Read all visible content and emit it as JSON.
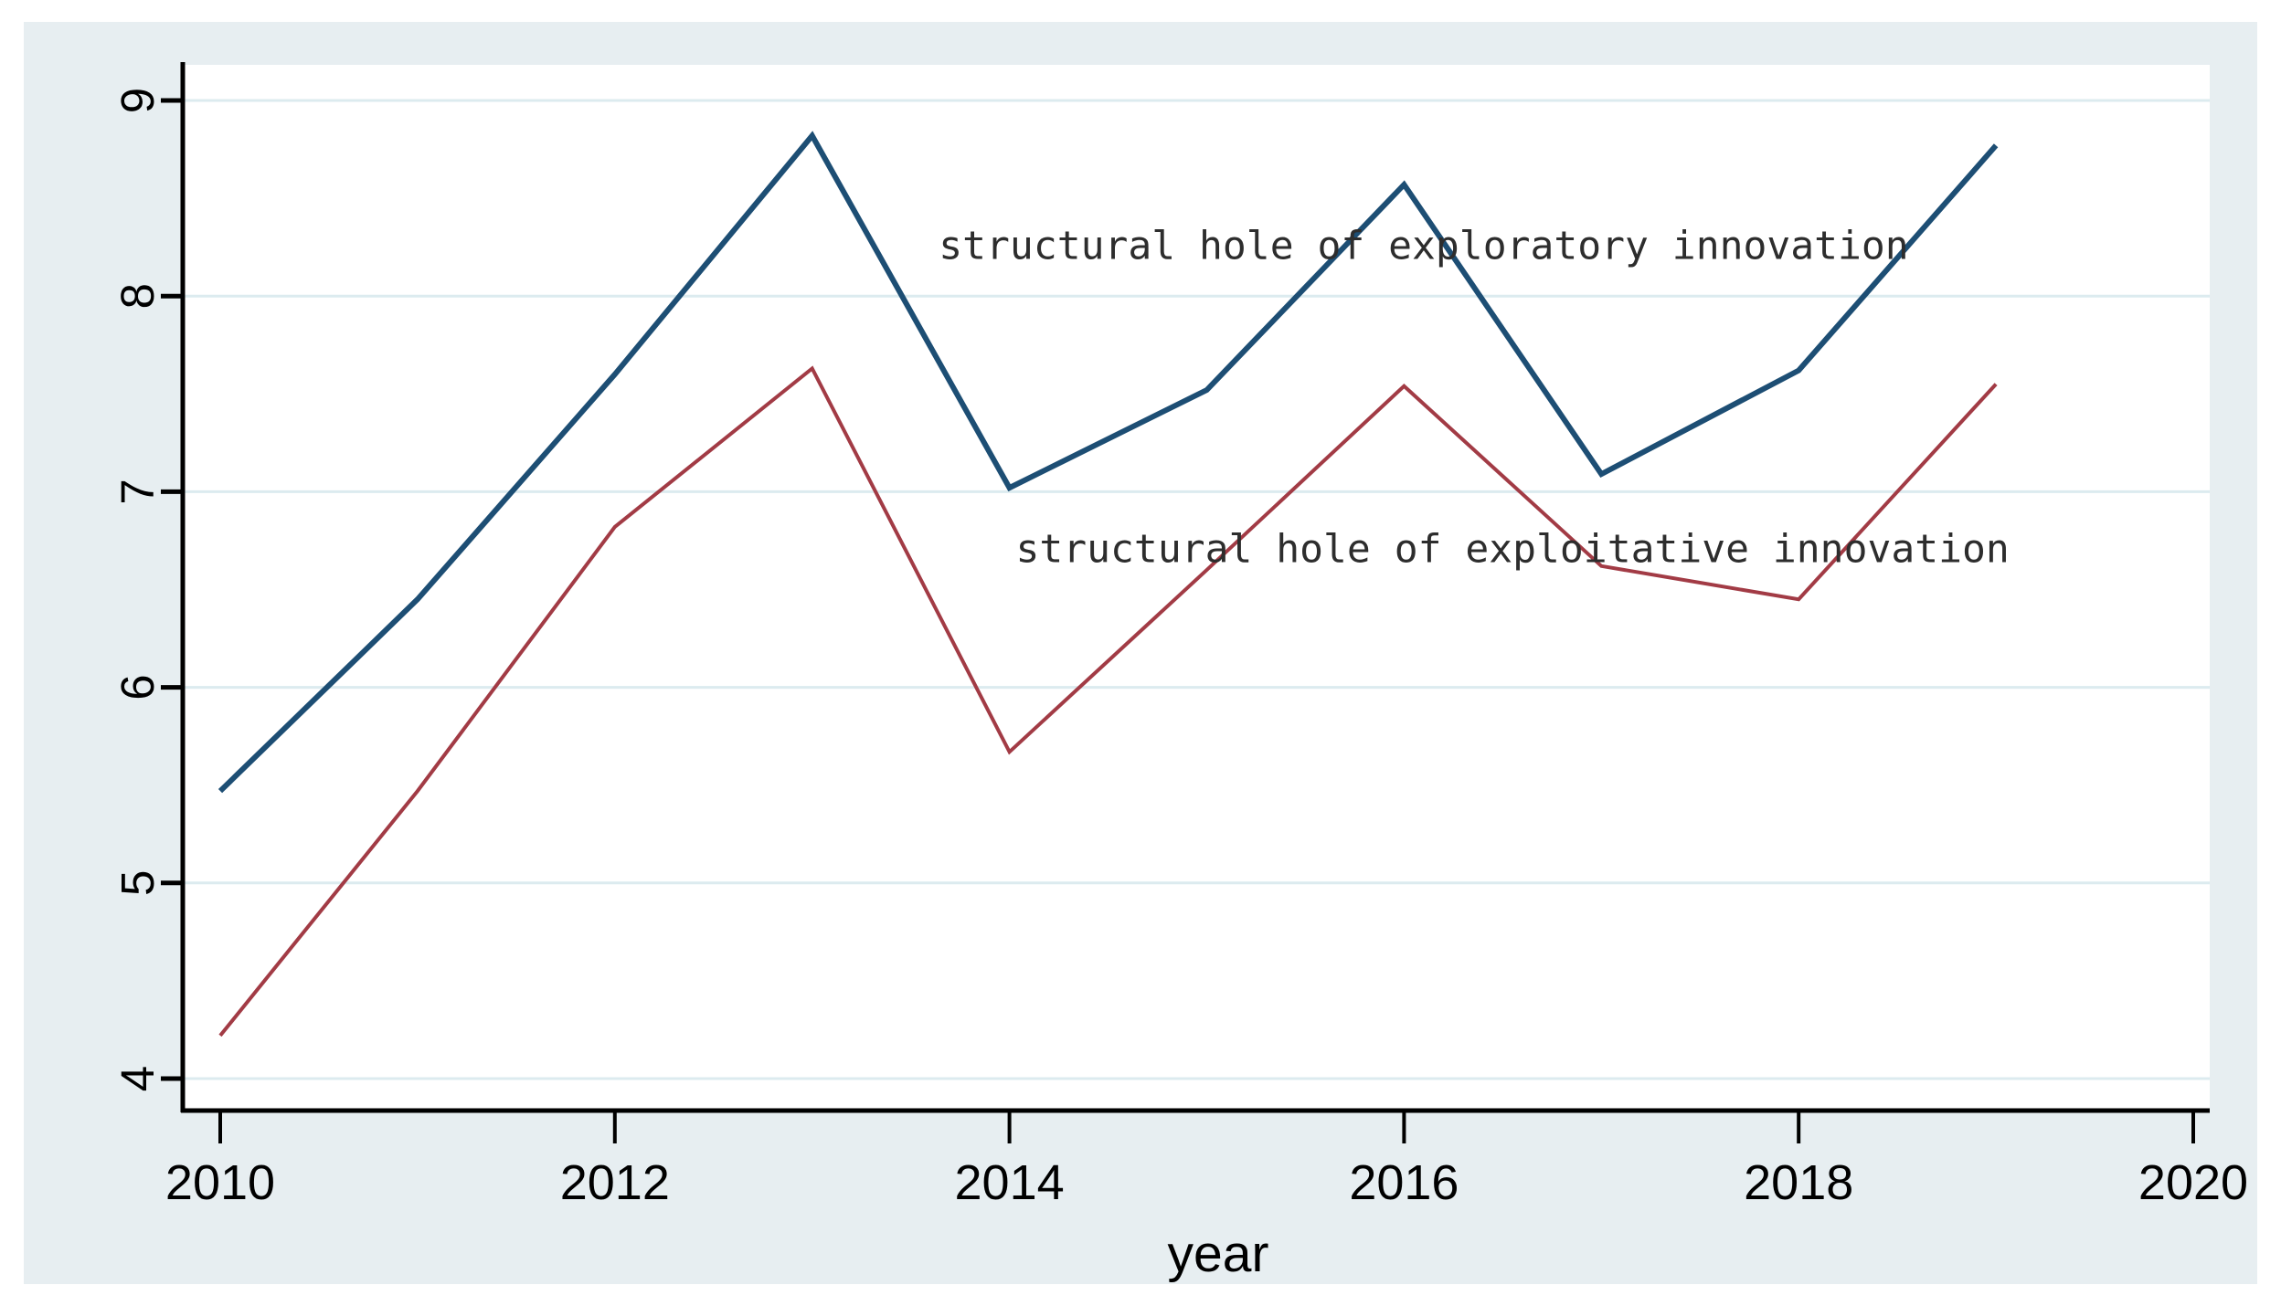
{
  "chart_data": {
    "type": "line",
    "x": [
      2010,
      2011,
      2012,
      2013,
      2014,
      2015,
      2016,
      2017,
      2018,
      2019
    ],
    "series": [
      {
        "name": "structural hole of exploratory innovation",
        "color": "#1d4e74",
        "values": [
          5.47,
          6.45,
          7.6,
          8.82,
          7.02,
          7.52,
          8.57,
          7.09,
          7.62,
          8.77
        ]
      },
      {
        "name": "structural hole of exploitative innovation",
        "color": "#a23b45",
        "values": [
          4.22,
          5.47,
          6.82,
          7.63,
          5.67,
          6.6,
          7.54,
          6.62,
          6.45,
          7.55
        ]
      }
    ],
    "title": "",
    "xlabel": "year",
    "ylabel": "",
    "xlim": [
      2010,
      2020
    ],
    "ylim": [
      4,
      9
    ],
    "x_ticks": [
      2010,
      2012,
      2014,
      2016,
      2018,
      2020
    ],
    "y_ticks": [
      4,
      5,
      6,
      7,
      8,
      9
    ],
    "grid": "horizontal-only",
    "legend_position": "none (inline text annotations)",
    "annotations": [
      {
        "text": "structural hole of exploratory innovation",
        "x": 2016.1,
        "y": 8.26
      },
      {
        "text": "structural hole of exploitative innovation",
        "x": 2016.55,
        "y": 6.71
      }
    ],
    "colors": {
      "panel_background": "#e7eef1",
      "plot_background": "#ffffff",
      "gridline": "#dcebef",
      "axis": "#000000",
      "annotation_text": "#2d2d2d"
    }
  }
}
